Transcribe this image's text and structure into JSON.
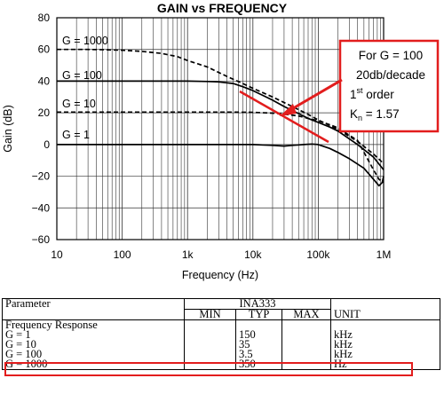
{
  "chart_data": {
    "type": "line",
    "title": "GAIN vs FREQUENCY",
    "xlabel": "Frequency (Hz)",
    "ylabel": "Gain (dB)",
    "xscale": "log",
    "xlim": [
      10,
      1000000
    ],
    "ylim": [
      -60,
      80
    ],
    "x_tick_labels": [
      "10",
      "100",
      "1k",
      "10k",
      "100k",
      "1M"
    ],
    "x_tick_values": [
      10,
      100,
      1000,
      10000,
      100000,
      1000000
    ],
    "y_ticks": [
      80,
      60,
      40,
      20,
      0,
      -20,
      -40,
      -60
    ],
    "y_tick_labels": [
      "80",
      "60",
      "40",
      "20",
      "0",
      "−20",
      "−40",
      "−60"
    ],
    "grid": true,
    "series": [
      {
        "name": "G = 1000",
        "style": "dashed",
        "x": [
          10,
          30,
          60,
          100,
          200,
          400,
          700,
          1000,
          2000,
          4000,
          7000,
          10000,
          20000,
          40000,
          70000,
          100000,
          150000,
          200000,
          400000,
          700000,
          1000000
        ],
        "y": [
          60,
          60,
          59.8,
          59.5,
          58.8,
          57.5,
          55.5,
          53,
          49,
          43,
          38.5,
          35.5,
          30,
          24,
          19,
          15.5,
          12,
          9.5,
          2,
          -6,
          -12
        ]
      },
      {
        "name": "G = 100",
        "style": "solid",
        "x": [
          10,
          100,
          500,
          1000,
          2000,
          3000,
          5000,
          7000,
          10000,
          15000,
          20000,
          30000,
          50000,
          70000,
          100000,
          150000,
          200000,
          400000,
          700000,
          1000000
        ],
        "y": [
          40,
          40,
          40,
          40,
          39.8,
          39.5,
          38.5,
          36.5,
          34,
          30.5,
          28,
          24,
          19.5,
          16.5,
          14,
          11,
          8.5,
          0,
          -8,
          -16
        ]
      },
      {
        "name": "G = 10",
        "style": "dashed",
        "x": [
          10,
          1000,
          5000,
          10000,
          20000,
          30000,
          50000,
          70000,
          100000,
          150000,
          200000,
          400000,
          700000,
          850000,
          1000000
        ],
        "y": [
          20.5,
          20.5,
          20.5,
          20.3,
          19.8,
          19.2,
          18,
          16.5,
          15,
          12.5,
          10.5,
          2.5,
          -16,
          -22,
          -24
        ]
      },
      {
        "name": "G = 1",
        "style": "solid",
        "x": [
          10,
          1000,
          10000,
          20000,
          30000,
          40000,
          60000,
          80000,
          100000,
          150000,
          200000,
          300000,
          500000,
          700000,
          850000,
          950000,
          1000000
        ],
        "y": [
          0,
          0,
          0,
          -0.5,
          -1,
          -0.5,
          0,
          0.3,
          0,
          -2.5,
          -5,
          -9,
          -15,
          -22,
          -26,
          -24,
          -20
        ]
      }
    ],
    "annotation": {
      "line1": "For G = 100",
      "line2": "20db/decade",
      "line3_base": "1",
      "line3_sup": "st",
      "line3_rest": " order",
      "line4_base": "K",
      "line4_sub": "n",
      "line4_rest": " = 1.57"
    }
  },
  "table": {
    "param_header": "Parameter",
    "group_header": "INA333",
    "min_header": "MIN",
    "typ_header": "TYP",
    "max_header": "MAX",
    "unit_header": "UNIT",
    "section": "Frequency Response",
    "rows": [
      {
        "param": "G = 1",
        "min": "",
        "typ": "150",
        "max": "",
        "unit": "kHz"
      },
      {
        "param": "G = 10",
        "min": "",
        "typ": "35",
        "max": "",
        "unit": "kHz"
      },
      {
        "param": "G = 100",
        "min": "",
        "typ": "3.5",
        "max": "",
        "unit": "kHz"
      },
      {
        "param": "G = 1000",
        "min": "",
        "typ": "350",
        "max": "",
        "unit": "Hz"
      }
    ]
  },
  "colors": {
    "highlight": "#e21d1d",
    "line": "#000000",
    "grid": "#333333"
  }
}
